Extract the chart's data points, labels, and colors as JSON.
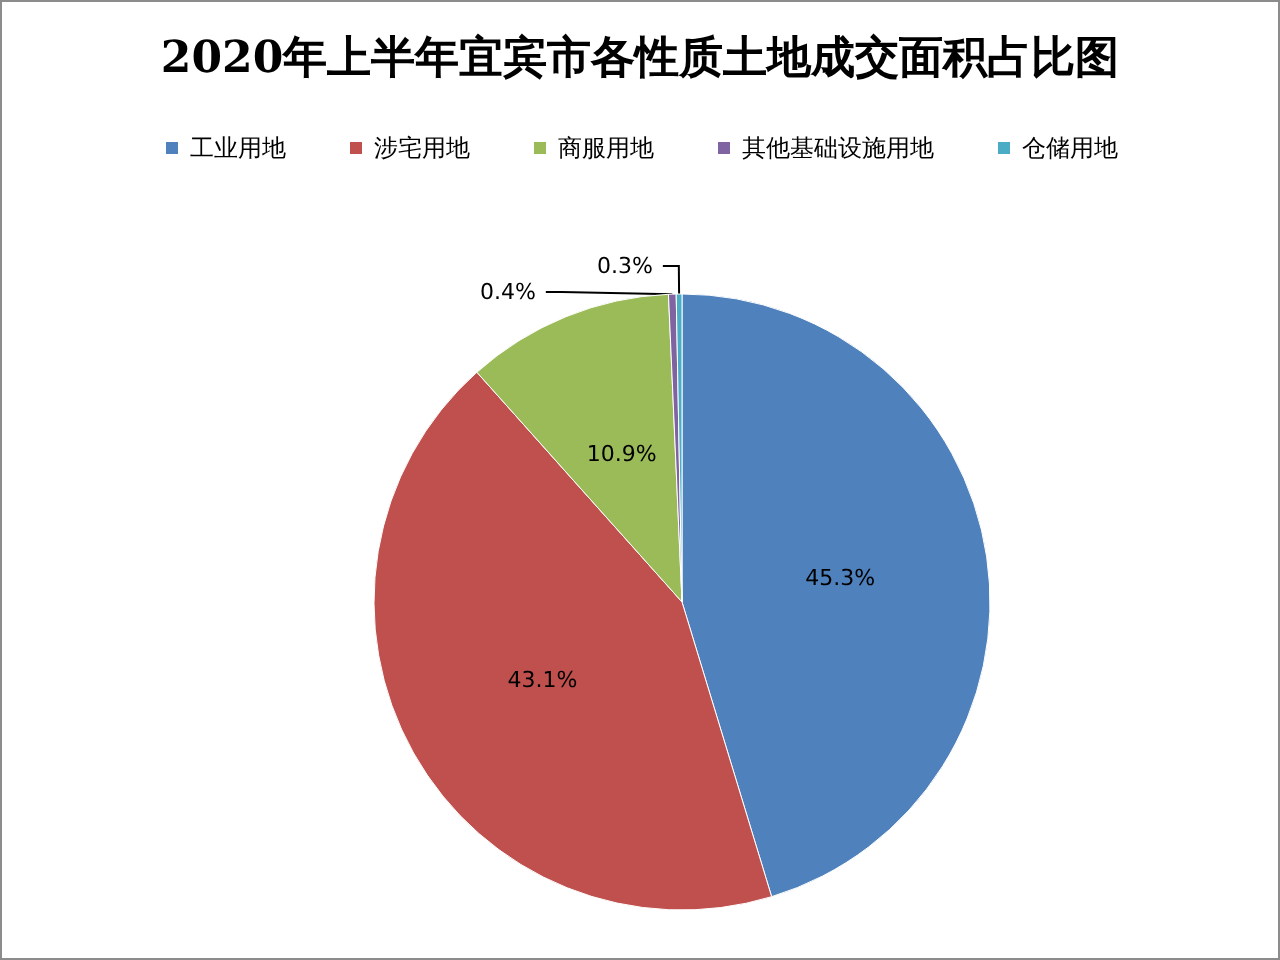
{
  "chart_data": {
    "type": "pie",
    "title": "2020年上半年宜宾市各性质土地成交面积占比图",
    "categories": [
      "工业用地",
      "涉宅用地",
      "商服用地",
      "其他基础设施用地",
      "仓储用地"
    ],
    "values": [
      45.3,
      43.1,
      10.9,
      0.4,
      0.3
    ],
    "colors": [
      "#4f81bd",
      "#c0504d",
      "#9bbb59",
      "#8064a2",
      "#4bacc6"
    ],
    "value_labels": [
      "45.3%",
      "43.1%",
      "10.9%",
      "0.4%",
      "0.3%"
    ],
    "legend": "top"
  }
}
